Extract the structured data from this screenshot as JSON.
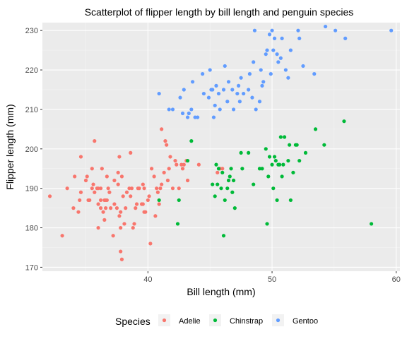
{
  "chart_data": {
    "type": "scatter",
    "title": "Scatterplot of flipper length by bill length and penguin species",
    "xlabel": "Bill length (mm)",
    "ylabel": "Flipper length (mm)",
    "xlim": [
      31.5,
      60.3
    ],
    "ylim": [
      169,
      232
    ],
    "x_ticks": [
      40,
      50,
      60
    ],
    "y_ticks": [
      170,
      180,
      190,
      200,
      210,
      220,
      230
    ],
    "grid": true,
    "legend": {
      "title": "Species",
      "position": "bottom"
    },
    "series": [
      {
        "name": "Adelie",
        "color": "#F8766D",
        "points": [
          [
            32.1,
            188
          ],
          [
            33.1,
            178
          ],
          [
            33.5,
            190
          ],
          [
            34.0,
            185
          ],
          [
            34.1,
            193
          ],
          [
            34.4,
            184
          ],
          [
            34.5,
            187
          ],
          [
            34.6,
            189
          ],
          [
            34.6,
            198
          ],
          [
            35.0,
            192
          ],
          [
            35.1,
            193
          ],
          [
            35.2,
            187
          ],
          [
            35.3,
            187
          ],
          [
            35.5,
            190
          ],
          [
            35.5,
            195
          ],
          [
            35.6,
            191
          ],
          [
            35.7,
            189
          ],
          [
            35.7,
            202
          ],
          [
            35.9,
            190
          ],
          [
            36.0,
            180
          ],
          [
            36.0,
            186
          ],
          [
            36.0,
            190
          ],
          [
            36.2,
            185
          ],
          [
            36.2,
            187
          ],
          [
            36.2,
            190
          ],
          [
            36.3,
            195
          ],
          [
            36.4,
            184
          ],
          [
            36.5,
            182
          ],
          [
            36.5,
            187
          ],
          [
            36.6,
            185
          ],
          [
            36.6,
            187
          ],
          [
            36.7,
            187
          ],
          [
            36.7,
            193
          ],
          [
            36.8,
            190
          ],
          [
            36.9,
            189
          ],
          [
            37.0,
            185
          ],
          [
            37.2,
            178
          ],
          [
            37.3,
            192
          ],
          [
            37.3,
            186
          ],
          [
            37.5,
            185
          ],
          [
            37.6,
            191
          ],
          [
            37.6,
            194
          ],
          [
            37.7,
            183
          ],
          [
            37.7,
            198
          ],
          [
            37.8,
            174
          ],
          [
            37.8,
            180
          ],
          [
            37.8,
            184
          ],
          [
            37.9,
            172
          ],
          [
            37.9,
            193
          ],
          [
            38.0,
            188
          ],
          [
            38.1,
            181
          ],
          [
            38.2,
            185
          ],
          [
            38.3,
            189
          ],
          [
            38.5,
            190
          ],
          [
            38.6,
            188
          ],
          [
            38.6,
            199
          ],
          [
            38.7,
            190
          ],
          [
            38.8,
            180
          ],
          [
            38.9,
            181
          ],
          [
            39.0,
            185
          ],
          [
            39.1,
            186
          ],
          [
            39.2,
            190
          ],
          [
            39.3,
            190
          ],
          [
            39.5,
            186
          ],
          [
            39.6,
            186
          ],
          [
            39.6,
            191
          ],
          [
            39.7,
            184
          ],
          [
            39.7,
            190
          ],
          [
            39.8,
            184
          ],
          [
            40.0,
            187
          ],
          [
            40.1,
            188
          ],
          [
            40.2,
            176
          ],
          [
            40.3,
            195
          ],
          [
            40.5,
            193
          ],
          [
            40.6,
            183
          ],
          [
            40.7,
            190
          ],
          [
            40.8,
            189
          ],
          [
            40.9,
            186
          ],
          [
            41.0,
            190
          ],
          [
            41.1,
            191
          ],
          [
            41.1,
            205
          ],
          [
            41.3,
            194
          ],
          [
            41.4,
            202
          ],
          [
            41.5,
            201
          ],
          [
            41.6,
            192
          ],
          [
            41.7,
            195
          ],
          [
            41.8,
            198
          ],
          [
            42.0,
            190
          ],
          [
            42.2,
            197
          ],
          [
            42.3,
            196
          ],
          [
            42.5,
            190
          ],
          [
            42.7,
            196
          ],
          [
            42.8,
            195
          ],
          [
            42.9,
            196
          ],
          [
            43.1,
            197
          ],
          [
            43.2,
            192
          ],
          [
            44.1,
            196
          ],
          [
            45.6,
            194
          ],
          [
            45.8,
            195
          ],
          [
            46.0,
            195
          ]
        ]
      },
      {
        "name": "Chinstrap",
        "color": "#00BA38",
        "points": [
          [
            40.9,
            187
          ],
          [
            42.4,
            181
          ],
          [
            42.5,
            187
          ],
          [
            43.2,
            197
          ],
          [
            43.5,
            202
          ],
          [
            45.2,
            191
          ],
          [
            45.4,
            188
          ],
          [
            45.5,
            196
          ],
          [
            45.6,
            191
          ],
          [
            45.7,
            195
          ],
          [
            45.9,
            190
          ],
          [
            46.0,
            194
          ],
          [
            46.1,
            178
          ],
          [
            46.2,
            187
          ],
          [
            46.4,
            190
          ],
          [
            46.5,
            192
          ],
          [
            46.6,
            193
          ],
          [
            46.7,
            195
          ],
          [
            46.8,
            189
          ],
          [
            46.9,
            192
          ],
          [
            47.0,
            185
          ],
          [
            47.5,
            199
          ],
          [
            47.6,
            195
          ],
          [
            48.1,
            199
          ],
          [
            48.5,
            191
          ],
          [
            49.0,
            195
          ],
          [
            49.2,
            195
          ],
          [
            49.5,
            200
          ],
          [
            49.6,
            181
          ],
          [
            49.7,
            193
          ],
          [
            49.8,
            198
          ],
          [
            50.0,
            196
          ],
          [
            50.1,
            190
          ],
          [
            50.2,
            198
          ],
          [
            50.3,
            197
          ],
          [
            50.4,
            187
          ],
          [
            50.5,
            196
          ],
          [
            50.6,
            196
          ],
          [
            50.7,
            203
          ],
          [
            50.8,
            193
          ],
          [
            50.9,
            196
          ],
          [
            51.0,
            203
          ],
          [
            51.3,
            197
          ],
          [
            51.4,
            201
          ],
          [
            51.5,
            187
          ],
          [
            51.7,
            194
          ],
          [
            51.9,
            201
          ],
          [
            52.0,
            201
          ],
          [
            52.2,
            197
          ],
          [
            52.7,
            199
          ],
          [
            53.5,
            205
          ],
          [
            54.2,
            201
          ],
          [
            55.8,
            207
          ],
          [
            58.0,
            181
          ]
        ]
      },
      {
        "name": "Gentoo",
        "color": "#619CFF",
        "points": [
          [
            40.9,
            214
          ],
          [
            41.7,
            210
          ],
          [
            42.0,
            210
          ],
          [
            42.6,
            213
          ],
          [
            42.8,
            209
          ],
          [
            42.9,
            215
          ],
          [
            43.2,
            208
          ],
          [
            43.3,
            209
          ],
          [
            43.5,
            210
          ],
          [
            43.6,
            217
          ],
          [
            43.8,
            208
          ],
          [
            44.0,
            208
          ],
          [
            44.4,
            219
          ],
          [
            44.5,
            214
          ],
          [
            44.9,
            213
          ],
          [
            45.0,
            220
          ],
          [
            45.1,
            215
          ],
          [
            45.2,
            215
          ],
          [
            45.3,
            208
          ],
          [
            45.4,
            211
          ],
          [
            45.5,
            216
          ],
          [
            45.7,
            214
          ],
          [
            45.8,
            210
          ],
          [
            46.1,
            215
          ],
          [
            46.2,
            221
          ],
          [
            46.4,
            212
          ],
          [
            46.5,
            217
          ],
          [
            46.8,
            215
          ],
          [
            46.9,
            210
          ],
          [
            47.2,
            214
          ],
          [
            47.3,
            216
          ],
          [
            47.4,
            212
          ],
          [
            47.5,
            218
          ],
          [
            47.7,
            214
          ],
          [
            48.1,
            215
          ],
          [
            48.2,
            219
          ],
          [
            48.4,
            213
          ],
          [
            48.5,
            222
          ],
          [
            48.6,
            230
          ],
          [
            48.7,
            210
          ],
          [
            49.0,
            212
          ],
          [
            49.1,
            220
          ],
          [
            49.2,
            216
          ],
          [
            49.3,
            217
          ],
          [
            49.5,
            224
          ],
          [
            49.6,
            225
          ],
          [
            49.8,
            229
          ],
          [
            49.9,
            219
          ],
          [
            50.0,
            230
          ],
          [
            50.1,
            225
          ],
          [
            50.2,
            228
          ],
          [
            50.4,
            224
          ],
          [
            50.5,
            222
          ],
          [
            50.7,
            223
          ],
          [
            50.8,
            228
          ],
          [
            51.1,
            220
          ],
          [
            51.3,
            218
          ],
          [
            51.5,
            225
          ],
          [
            52.1,
            230
          ],
          [
            52.2,
            228
          ],
          [
            52.5,
            221
          ],
          [
            53.4,
            219
          ],
          [
            54.3,
            231
          ],
          [
            55.1,
            230
          ],
          [
            55.9,
            228
          ],
          [
            59.6,
            230
          ]
        ]
      }
    ]
  }
}
